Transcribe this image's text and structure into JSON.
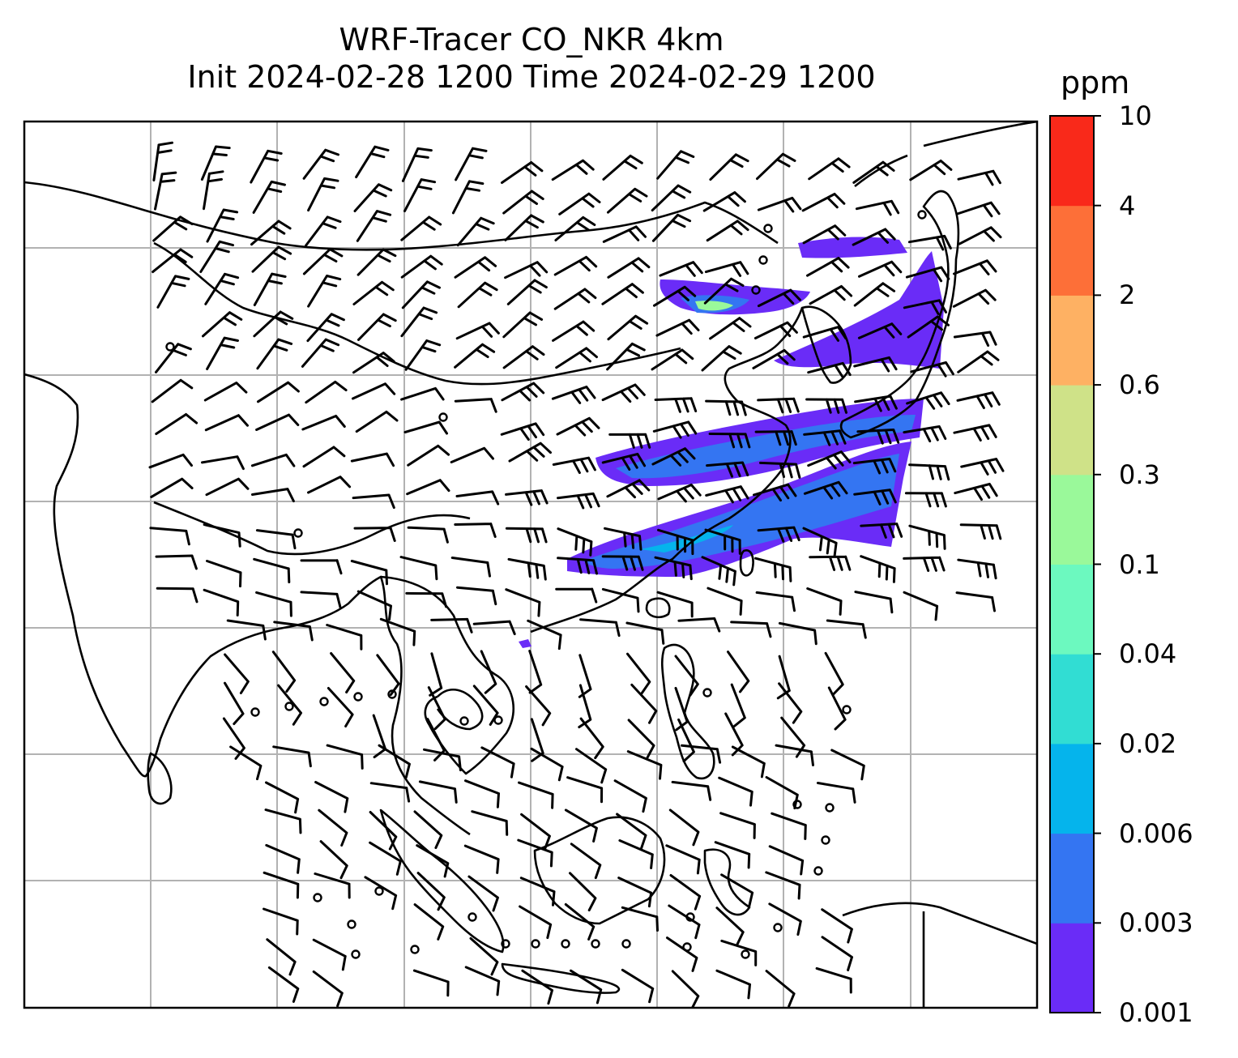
{
  "title": {
    "line1": "WRF-Tracer CO_NKR 4km",
    "line2": "Init 2024-02-28 1200 Time 2024-02-29 1200"
  },
  "colorbar": {
    "unit": "ppm",
    "levels": [
      "0.001",
      "0.003",
      "0.006",
      "0.02",
      "0.04",
      "0.1",
      "0.3",
      "0.6",
      "2",
      "4",
      "10"
    ],
    "colors": [
      "#6a2cf7",
      "#3475f2",
      "#05b4ec",
      "#31ddd3",
      "#6cf9bf",
      "#9af99a",
      "#cfe288",
      "#feb163",
      "#fd6f38",
      "#f9291a"
    ]
  },
  "map": {
    "background": "#ffffff",
    "gridline_color": "#b2b2b2",
    "coastline_color": "#000000",
    "layers": [
      "coastlines",
      "gridlines",
      "wind-barbs",
      "tracer-concentration"
    ]
  }
}
